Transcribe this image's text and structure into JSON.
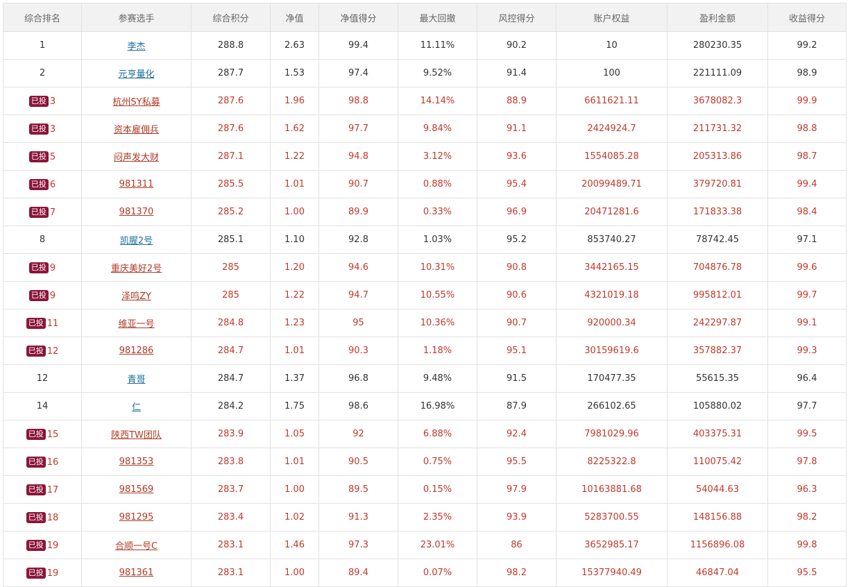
{
  "table": {
    "columns": [
      "综合排名",
      "参赛选手",
      "综合积分",
      "净值",
      "净值得分",
      "最大回撤",
      "风控得分",
      "账户权益",
      "盈利金额",
      "收益得分"
    ],
    "rows": [
      {
        "badge": "",
        "rank": "1",
        "name": "李杰",
        "score": "288.8",
        "nav": "2.63",
        "nav_score": "99.4",
        "drawdown": "11.11%",
        "risk_score": "90.2",
        "equity": "10",
        "profit": "280230.35",
        "profit_score": "99.2"
      },
      {
        "badge": "",
        "rank": "2",
        "name": "元亨量化",
        "score": "287.7",
        "nav": "1.53",
        "nav_score": "97.4",
        "drawdown": "9.52%",
        "risk_score": "91.4",
        "equity": "100",
        "profit": "221111.09",
        "profit_score": "98.9"
      },
      {
        "badge": "已投",
        "rank": "3",
        "name": "杭州SY私募",
        "score": "287.6",
        "nav": "1.96",
        "nav_score": "98.8",
        "drawdown": "14.14%",
        "risk_score": "88.9",
        "equity": "6611621.11",
        "profit": "3678082.3",
        "profit_score": "99.9"
      },
      {
        "badge": "已投",
        "rank": "3",
        "name": "资本雇佣兵",
        "score": "287.6",
        "nav": "1.62",
        "nav_score": "97.7",
        "drawdown": "9.84%",
        "risk_score": "91.1",
        "equity": "2424924.7",
        "profit": "211731.32",
        "profit_score": "98.8"
      },
      {
        "badge": "已投",
        "rank": "5",
        "name": "闷声发大财",
        "score": "287.1",
        "nav": "1.22",
        "nav_score": "94.8",
        "drawdown": "3.12%",
        "risk_score": "93.6",
        "equity": "1554085.28",
        "profit": "205313.86",
        "profit_score": "98.7"
      },
      {
        "badge": "已投",
        "rank": "6",
        "name": "981311",
        "score": "285.5",
        "nav": "1.01",
        "nav_score": "90.7",
        "drawdown": "0.88%",
        "risk_score": "95.4",
        "equity": "20099489.71",
        "profit": "379720.81",
        "profit_score": "99.4"
      },
      {
        "badge": "已投",
        "rank": "7",
        "name": "981370",
        "score": "285.2",
        "nav": "1.00",
        "nav_score": "89.9",
        "drawdown": "0.33%",
        "risk_score": "96.9",
        "equity": "20471281.6",
        "profit": "171833.38",
        "profit_score": "98.4"
      },
      {
        "badge": "",
        "rank": "8",
        "name": "凯腥2号",
        "score": "285.1",
        "nav": "1.10",
        "nav_score": "92.8",
        "drawdown": "1.03%",
        "risk_score": "95.2",
        "equity": "853740.27",
        "profit": "78742.45",
        "profit_score": "97.1"
      },
      {
        "badge": "已投",
        "rank": "9",
        "name": "重庆美好2号",
        "score": "285",
        "nav": "1.20",
        "nav_score": "94.6",
        "drawdown": "10.31%",
        "risk_score": "90.8",
        "equity": "3442165.15",
        "profit": "704876.78",
        "profit_score": "99.6"
      },
      {
        "badge": "已投",
        "rank": "9",
        "name": "泽鸣ZY",
        "score": "285",
        "nav": "1.22",
        "nav_score": "94.7",
        "drawdown": "10.55%",
        "risk_score": "90.6",
        "equity": "4321019.18",
        "profit": "995812.01",
        "profit_score": "99.7"
      },
      {
        "badge": "已投",
        "rank": "11",
        "name": "维亚一号",
        "score": "284.8",
        "nav": "1.23",
        "nav_score": "95",
        "drawdown": "10.36%",
        "risk_score": "90.7",
        "equity": "920000.34",
        "profit": "242297.87",
        "profit_score": "99.1"
      },
      {
        "badge": "已投",
        "rank": "12",
        "name": "981286",
        "score": "284.7",
        "nav": "1.01",
        "nav_score": "90.3",
        "drawdown": "1.18%",
        "risk_score": "95.1",
        "equity": "30159619.6",
        "profit": "357882.37",
        "profit_score": "99.3"
      },
      {
        "badge": "",
        "rank": "12",
        "name": "青哥",
        "score": "284.7",
        "nav": "1.37",
        "nav_score": "96.8",
        "drawdown": "9.48%",
        "risk_score": "91.5",
        "equity": "170477.35",
        "profit": "55615.35",
        "profit_score": "96.4"
      },
      {
        "badge": "",
        "rank": "14",
        "name": "仁",
        "score": "284.2",
        "nav": "1.75",
        "nav_score": "98.6",
        "drawdown": "16.98%",
        "risk_score": "87.9",
        "equity": "266102.65",
        "profit": "105880.02",
        "profit_score": "97.7"
      },
      {
        "badge": "已投",
        "rank": "15",
        "name": "陕西TW团队",
        "score": "283.9",
        "nav": "1.05",
        "nav_score": "92",
        "drawdown": "6.88%",
        "risk_score": "92.4",
        "equity": "7981029.96",
        "profit": "403375.31",
        "profit_score": "99.5"
      },
      {
        "badge": "已投",
        "rank": "16",
        "name": "981353",
        "score": "283.8",
        "nav": "1.01",
        "nav_score": "90.5",
        "drawdown": "0.75%",
        "risk_score": "95.5",
        "equity": "8225322.8",
        "profit": "110075.42",
        "profit_score": "97.8"
      },
      {
        "badge": "已投",
        "rank": "17",
        "name": "981569",
        "score": "283.7",
        "nav": "1.00",
        "nav_score": "89.5",
        "drawdown": "0.15%",
        "risk_score": "97.9",
        "equity": "10163881.68",
        "profit": "54044.63",
        "profit_score": "96.3"
      },
      {
        "badge": "已投",
        "rank": "18",
        "name": "981295",
        "score": "283.4",
        "nav": "1.02",
        "nav_score": "91.3",
        "drawdown": "2.35%",
        "risk_score": "93.9",
        "equity": "5283700.55",
        "profit": "148156.88",
        "profit_score": "98.2"
      },
      {
        "badge": "已投",
        "rank": "19",
        "name": "合顺一号C",
        "score": "283.1",
        "nav": "1.46",
        "nav_score": "97.3",
        "drawdown": "23.01%",
        "risk_score": "86",
        "equity": "3652985.17",
        "profit": "1156896.08",
        "profit_score": "99.8"
      },
      {
        "badge": "已投",
        "rank": "19",
        "name": "981361",
        "score": "283.1",
        "nav": "1.00",
        "nav_score": "89.4",
        "drawdown": "0.07%",
        "risk_score": "98.2",
        "equity": "15377940.49",
        "profit": "46847.04",
        "profit_score": "95.5"
      }
    ]
  },
  "colors": {
    "highlight_text": "#c0392b",
    "link_blue": "#1a6fa0",
    "badge_bg": "#8b1538",
    "header_bg": "#f2f2f2",
    "border": "#e2e2e2"
  }
}
